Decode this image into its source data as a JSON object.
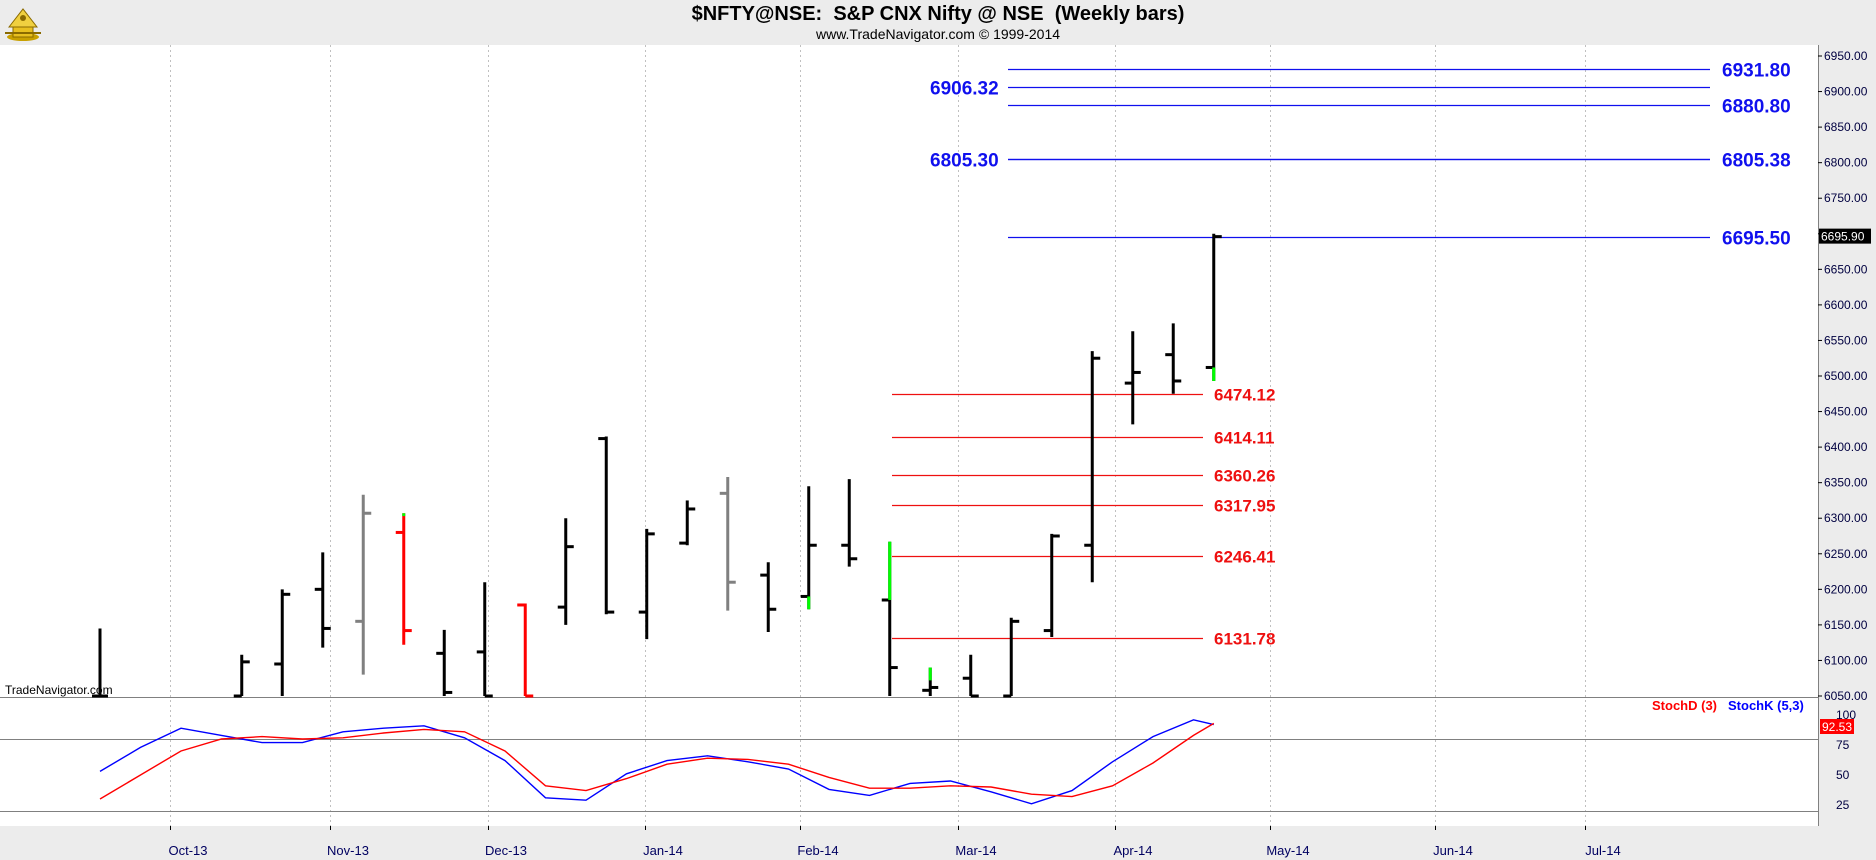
{
  "header": {
    "title": "$NFTY@NSE:  S&P CNX Nifty @ NSE  (Weekly bars)",
    "subtitle": "www.TradeNavigator.com © 1999-2014",
    "watermark": "TradeNavigator.com"
  },
  "colors": {
    "blue_level": "#1010ee",
    "red_level": "#ee1010",
    "stoch_d": "#ff0000",
    "stoch_k": "#0000ff",
    "bar_black": "#000000",
    "bar_gray": "#808080",
    "bar_red": "#ff0000",
    "bar_green": "#00ff00"
  },
  "chart_data": [
    {
      "type": "ohlc",
      "title": "$NFTY@NSE:  S&P CNX Nifty @ NSE  (Weekly bars)",
      "x_labels": [
        "Oct-13",
        "Nov-13",
        "Dec-13",
        "Jan-14",
        "Feb-14",
        "Mar-14",
        "Apr-14",
        "May-14",
        "Jun-14",
        "Jul-14"
      ],
      "y_ticks": [
        "6950.00",
        "6900.00",
        "6850.00",
        "6800.00",
        "6750.00",
        "6700.00",
        "6650.00",
        "6600.00",
        "6550.00",
        "6500.00",
        "6450.00",
        "6400.00",
        "6350.00",
        "6300.00",
        "6250.00",
        "6200.00",
        "6150.00",
        "6100.00",
        "6050.00"
      ],
      "ylim": [
        6040,
        6965
      ],
      "last_price_label": "6695.90",
      "bars": [
        {
          "w": 2,
          "o": 6040,
          "h": 6145,
          "l": 6040,
          "c": 6050,
          "color": "black"
        },
        {
          "w": 9,
          "o": 6040,
          "h": 6108,
          "l": 6040,
          "c": 6098,
          "color": "black"
        },
        {
          "w": 11,
          "o": 6095,
          "h": 6200,
          "l": 6040,
          "c": 6193,
          "color": "black"
        },
        {
          "w": 13,
          "o": 6200,
          "h": 6252,
          "l": 6118,
          "c": 6145,
          "color": "black"
        },
        {
          "w": 15,
          "o": 6155,
          "h": 6333,
          "l": 6080,
          "c": 6307,
          "color": "gray"
        },
        {
          "w": 17,
          "o": 6280,
          "h": 6307,
          "l": 6122,
          "c": 6142,
          "color": "red"
        },
        {
          "w": 19,
          "o": 6110,
          "h": 6143,
          "l": 6040,
          "c": 6055,
          "color": "black"
        },
        {
          "w": 21,
          "o": 6112,
          "h": 6210,
          "l": 6040,
          "c": 6050,
          "color": "black"
        },
        {
          "w": 23,
          "o": 6178,
          "h": 6180,
          "l": 6040,
          "c": 6040,
          "color": "red"
        },
        {
          "w": 25,
          "o": 6175,
          "h": 6300,
          "l": 6150,
          "c": 6260,
          "color": "black"
        },
        {
          "w": 27,
          "o": 6412,
          "h": 6415,
          "l": 6165,
          "c": 6168,
          "color": "black"
        },
        {
          "w": 29,
          "o": 6168,
          "h": 6285,
          "l": 6130,
          "c": 6278,
          "color": "black"
        },
        {
          "w": 31,
          "o": 6265,
          "h": 6325,
          "l": 6262,
          "c": 6313,
          "color": "black"
        },
        {
          "w": 33,
          "o": 6335,
          "h": 6358,
          "l": 6170,
          "c": 6210,
          "color": "gray"
        },
        {
          "w": 35,
          "o": 6220,
          "h": 6238,
          "l": 6140,
          "c": 6172,
          "color": "black"
        },
        {
          "w": 37,
          "o": 6190,
          "h": 6345,
          "l": 6172,
          "c": 6262,
          "color": "black"
        },
        {
          "w": 39,
          "o": 6262,
          "h": 6355,
          "l": 6232,
          "c": 6243,
          "color": "black"
        },
        {
          "w": 41,
          "o": 6185,
          "h": 6267,
          "l": 6040,
          "c": 6090,
          "color": "black"
        },
        {
          "w": 43,
          "o": 6058,
          "h": 6090,
          "l": 6040,
          "c": 6062,
          "color": "black"
        },
        {
          "w": 45,
          "o": 6075,
          "h": 6108,
          "l": 6040,
          "c": 6050,
          "color": "black"
        },
        {
          "w": 47,
          "o": 6050,
          "h": 6160,
          "l": 6040,
          "c": 6155,
          "color": "black"
        },
        {
          "w": 49,
          "o": 6142,
          "h": 6278,
          "l": 6133,
          "c": 6275,
          "color": "black"
        },
        {
          "w": 51,
          "o": 6262,
          "h": 6535,
          "l": 6210,
          "c": 6525,
          "color": "black"
        },
        {
          "w": 53,
          "o": 6490,
          "h": 6563,
          "l": 6432,
          "c": 6505,
          "color": "black"
        },
        {
          "w": 55,
          "o": 6530,
          "h": 6574,
          "l": 6475,
          "c": 6493,
          "color": "black"
        },
        {
          "w": 57,
          "o": 6512,
          "h": 6700,
          "l": 6493,
          "c": 6696,
          "color": "black"
        }
      ],
      "green_bar_segments": [
        {
          "w": 17,
          "from": 6303,
          "to": 6307
        },
        {
          "w": 37,
          "from": 6172,
          "to": 6190
        },
        {
          "w": 41,
          "from": 6185,
          "to": 6267
        },
        {
          "w": 43,
          "from": 6072,
          "to": 6090
        },
        {
          "w": 57,
          "from": 6493,
          "to": 6512
        }
      ]
    },
    {
      "type": "line",
      "legend": [
        {
          "name": "StochD (3)",
          "color": "#ff0000"
        },
        {
          "name": "StochK (5,3)",
          "color": "#0000ff"
        }
      ],
      "y_ticks": [
        "100",
        "75",
        "50",
        "25"
      ],
      "ylim": [
        15,
        100
      ],
      "last_value_label": "92.53",
      "series": [
        {
          "name": "StochK (5,3)",
          "x": [
            2,
            4,
            6,
            8,
            10,
            12,
            14,
            16,
            18,
            20,
            22,
            24,
            26,
            28,
            30,
            32,
            34,
            36,
            38,
            40,
            42,
            44,
            46,
            48,
            50,
            52,
            54,
            56,
            57
          ],
          "values": [
            53,
            73,
            89,
            83,
            77,
            77,
            86,
            89,
            91,
            81,
            62,
            31,
            29,
            51,
            62,
            66,
            61,
            55,
            38,
            33,
            43,
            45,
            36,
            26,
            37,
            61,
            82,
            96,
            92
          ]
        },
        {
          "name": "StochD (3)",
          "x": [
            2,
            4,
            6,
            8,
            10,
            12,
            14,
            16,
            18,
            20,
            22,
            24,
            26,
            28,
            30,
            32,
            34,
            36,
            38,
            40,
            42,
            44,
            46,
            48,
            50,
            52,
            54,
            56,
            57
          ],
          "values": [
            30,
            50,
            70,
            80,
            82,
            80,
            81,
            85,
            88,
            86,
            70,
            41,
            37,
            47,
            59,
            64,
            63,
            59,
            48,
            39,
            39,
            41,
            40,
            34,
            32,
            41,
            60,
            83,
            93
          ]
        }
      ]
    }
  ],
  "levels": {
    "blue_right": [
      {
        "value": 6931.8,
        "label": "6931.80"
      },
      {
        "value": 6880.8,
        "label": "6880.80"
      },
      {
        "value": 6805.38,
        "label": "6805.38"
      },
      {
        "value": 6695.5,
        "label": "6695.50"
      }
    ],
    "blue_left": [
      {
        "value": 6906.32,
        "label": "6906.32"
      },
      {
        "value": 6805.3,
        "label": "6805.30"
      }
    ],
    "red": [
      {
        "value": 6474.12,
        "label": "6474.12"
      },
      {
        "value": 6414.11,
        "label": "6414.11"
      },
      {
        "value": 6360.26,
        "label": "6360.26"
      },
      {
        "value": 6317.95,
        "label": "6317.95"
      },
      {
        "value": 6246.41,
        "label": "6246.41"
      },
      {
        "value": 6131.78,
        "label": "6131.78"
      }
    ]
  }
}
